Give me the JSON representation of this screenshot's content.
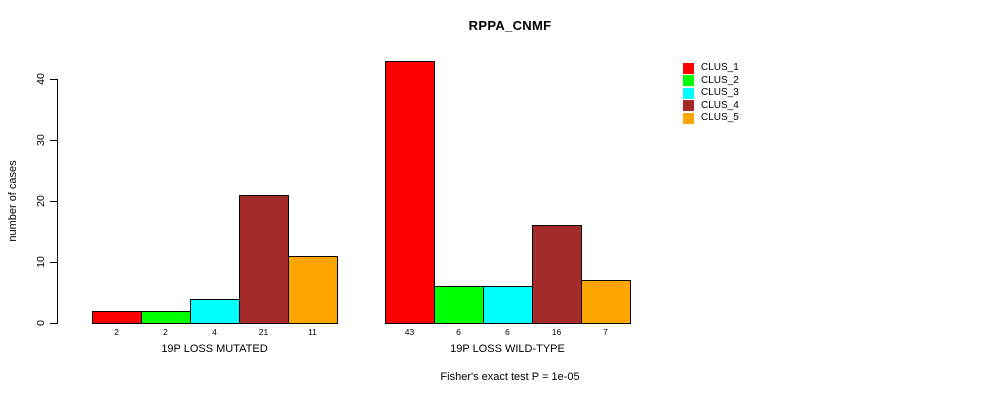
{
  "chart_data": {
    "type": "bar",
    "title": "RPPA_CNMF",
    "ylabel": "number of cases",
    "xlabel": "",
    "ylim": [
      0,
      43
    ],
    "yticks": [
      0,
      10,
      20,
      30,
      40
    ],
    "series": [
      "CLUS_1",
      "CLUS_2",
      "CLUS_3",
      "CLUS_4",
      "CLUS_5"
    ],
    "colors": [
      "#FF0000",
      "#00FF00",
      "#00FFFF",
      "#A52A2A",
      "#FFA500"
    ],
    "groups": [
      {
        "label": "19P LOSS MUTATED",
        "values": [
          2,
          2,
          4,
          21,
          11
        ]
      },
      {
        "label": "19P LOSS WILD-TYPE",
        "values": [
          43,
          6,
          6,
          16,
          7
        ]
      }
    ],
    "annotation": "Fisher's exact test P = 1e-05",
    "legend_position": "right",
    "grid": false,
    "background": "#ffffff"
  }
}
